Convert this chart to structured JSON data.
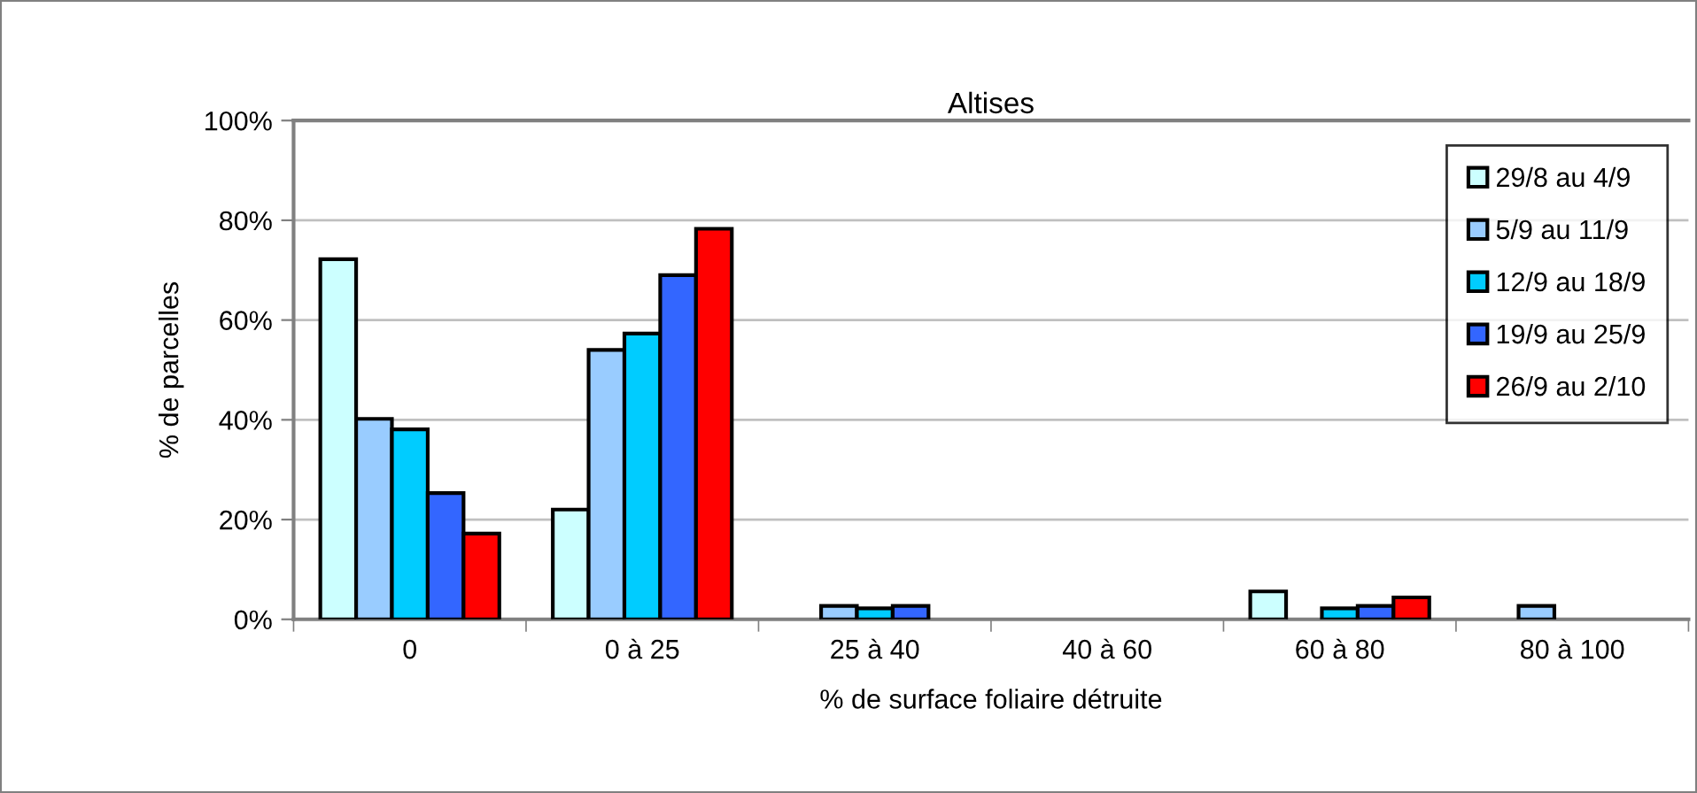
{
  "chart_data": {
    "type": "bar",
    "title": "Altises",
    "xlabel": "% de surface foliaire détruite",
    "ylabel": "% de parcelles",
    "categories": [
      "0",
      "0 à 25",
      "25 à 40",
      "40 à 60",
      "60 à 80",
      "80 à 100"
    ],
    "series": [
      {
        "name": "29/8 au 4/9",
        "color": "#ccffff",
        "values": [
          72.2,
          22.0,
          null,
          null,
          5.6,
          null
        ]
      },
      {
        "name": "5/9 au 11/9",
        "color": "#99ccff",
        "values": [
          40.2,
          54.0,
          2.7,
          null,
          null,
          2.7
        ]
      },
      {
        "name": "12/9 au 18/9",
        "color": "#00ccff",
        "values": [
          38.1,
          57.3,
          2.2,
          null,
          2.2,
          null
        ]
      },
      {
        "name": "19/9 au 25/9",
        "color": "#3366ff",
        "values": [
          25.3,
          69.0,
          2.7,
          null,
          2.7,
          null
        ]
      },
      {
        "name": "26/9 au 2/10",
        "color": "#ff0000",
        "values": [
          17.2,
          78.3,
          null,
          null,
          4.4,
          null
        ]
      }
    ],
    "ylim": [
      0,
      100
    ],
    "yticks": [
      {
        "value": 0,
        "label": "0%"
      },
      {
        "value": 20,
        "label": "20%"
      },
      {
        "value": 40,
        "label": "40%"
      },
      {
        "value": 60,
        "label": "60%"
      },
      {
        "value": 80,
        "label": "80%"
      },
      {
        "value": 100,
        "label": "100%"
      }
    ],
    "grid": "y",
    "legend": "top right"
  }
}
